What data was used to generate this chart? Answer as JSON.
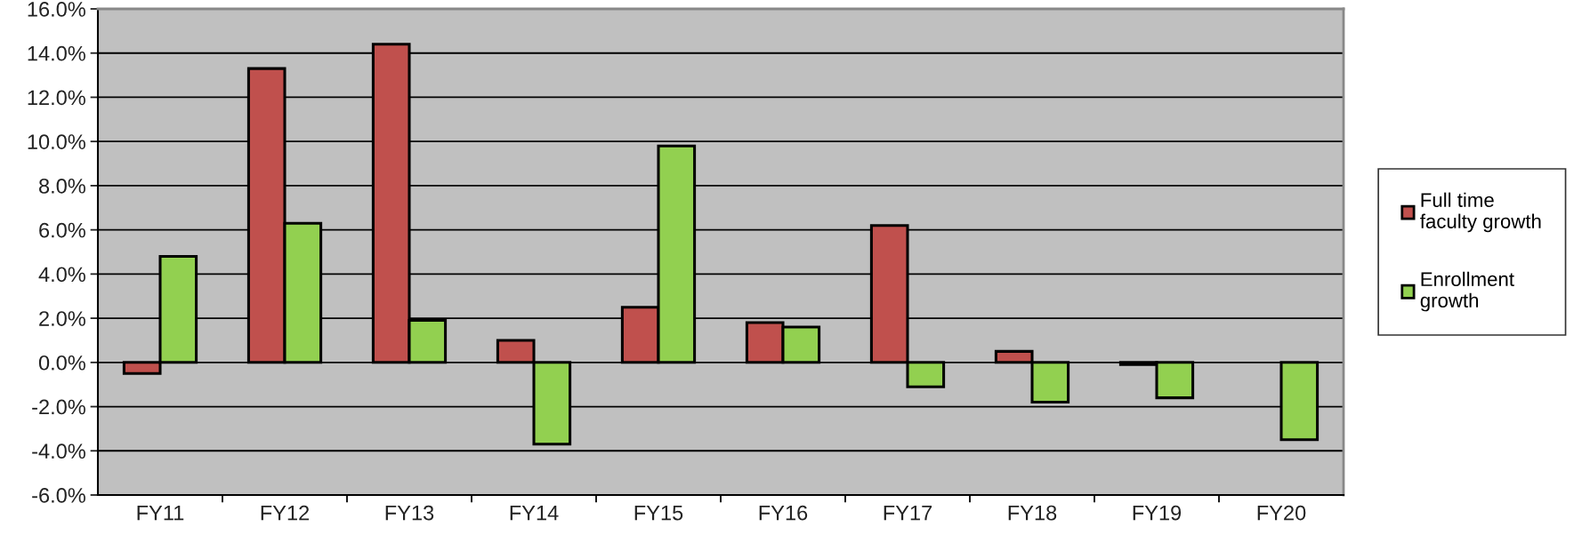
{
  "chart_data": {
    "type": "bar",
    "categories": [
      "FY11",
      "FY12",
      "FY13",
      "FY14",
      "FY15",
      "FY16",
      "FY17",
      "FY18",
      "FY19",
      "FY20"
    ],
    "series": [
      {
        "name": "Full time faculty growth",
        "color": "#c0504d",
        "values": [
          -0.5,
          13.3,
          14.4,
          1.0,
          2.5,
          1.8,
          6.2,
          0.5,
          -0.1,
          null
        ]
      },
      {
        "name": "Enrollment growth",
        "color": "#92d050",
        "values": [
          4.8,
          6.3,
          1.9,
          -3.7,
          9.8,
          1.6,
          -1.1,
          -1.8,
          -1.6,
          -3.5
        ]
      }
    ],
    "ylim": [
      -6,
      16
    ],
    "yticks": [
      {
        "value": -6,
        "label": "-6.0%"
      },
      {
        "value": -4,
        "label": "-4.0%"
      },
      {
        "value": -2,
        "label": "-2.0%"
      },
      {
        "value": 0,
        "label": "0.0%"
      },
      {
        "value": 2,
        "label": "2.0%"
      },
      {
        "value": 4,
        "label": "4.0%"
      },
      {
        "value": 6,
        "label": "6.0%"
      },
      {
        "value": 8,
        "label": "8.0%"
      },
      {
        "value": 10,
        "label": "10.0%"
      },
      {
        "value": 12,
        "label": "12.0%"
      },
      {
        "value": 14,
        "label": "14.0%"
      },
      {
        "value": 16,
        "label": "16.0%"
      }
    ],
    "grid": "y",
    "legend": "right"
  }
}
